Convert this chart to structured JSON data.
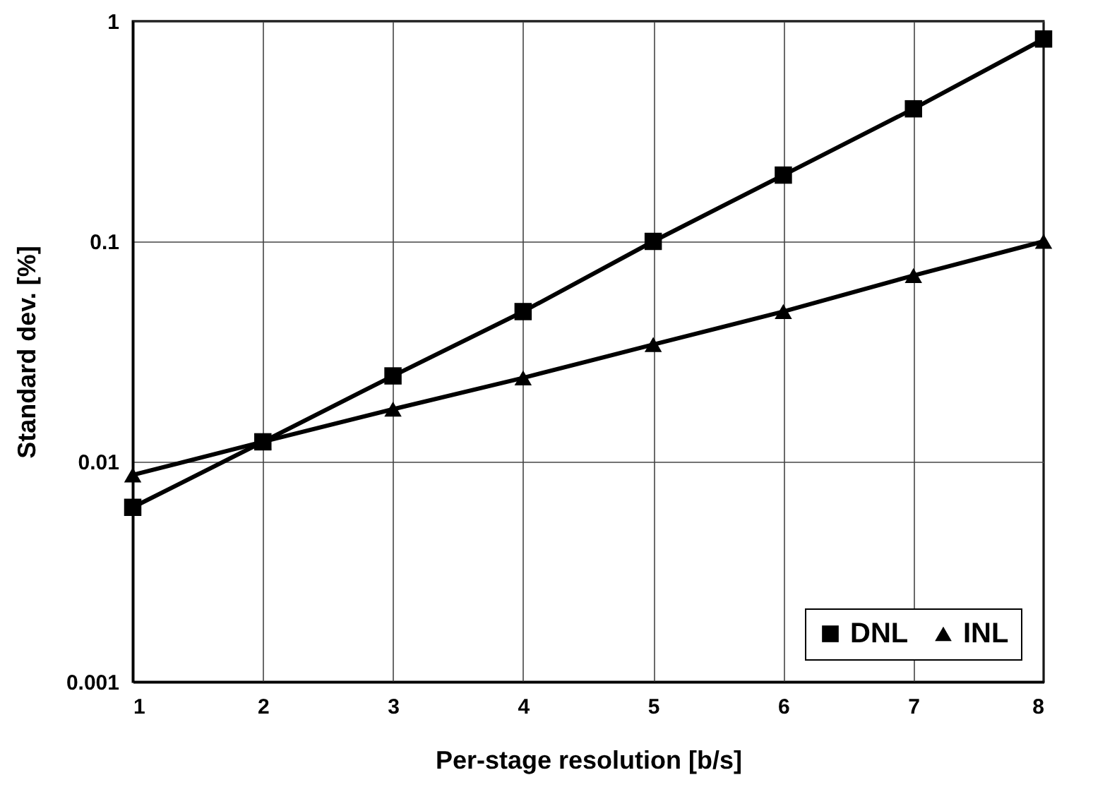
{
  "chart_data": {
    "type": "line",
    "xlabel": "Per-stage resolution [b/s]",
    "ylabel": "Standard dev. [%]",
    "x": [
      1,
      2,
      3,
      4,
      5,
      6,
      7,
      8
    ],
    "series": [
      {
        "name": "DNL",
        "color": "#000000",
        "marker": "square",
        "values": [
          0.0062,
          0.0123,
          0.0245,
          0.048,
          0.1,
          0.2,
          0.4,
          0.83
        ]
      },
      {
        "name": "INL",
        "color": "#000000",
        "marker": "triangle",
        "values": [
          0.0087,
          0.0123,
          0.0173,
          0.024,
          0.034,
          0.048,
          0.07,
          0.1
        ]
      }
    ],
    "xlim": [
      1,
      8
    ],
    "xticks": [
      1,
      2,
      3,
      4,
      5,
      6,
      7,
      8
    ],
    "ylim": [
      0.001,
      1
    ],
    "yticks": [
      0.001,
      0.01,
      0.1,
      1
    ],
    "log": "y",
    "grid": true,
    "legend": "bottom right",
    "line_style": "solid"
  }
}
